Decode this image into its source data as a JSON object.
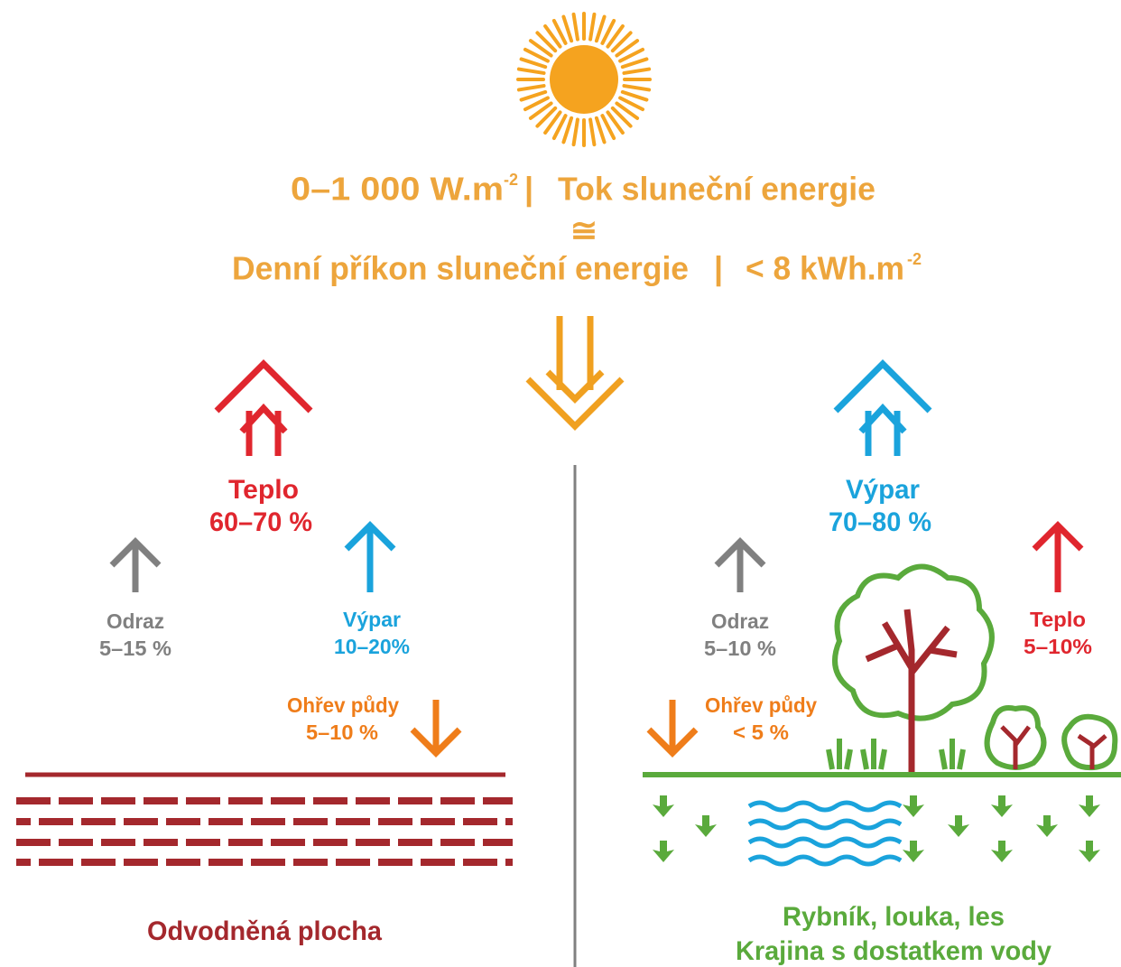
{
  "header": {
    "flux": {
      "value": "0–1 000 W.m",
      "sup": "-2"
    },
    "flux_label": "Tok sluneční energie",
    "separator": "|",
    "approx": "≅",
    "daily_label": "Denní příkon sluneční energie",
    "daily": {
      "value": "< 8 kWh.m",
      "sup": "-2"
    }
  },
  "left": {
    "title": "Odvodněná plocha",
    "flows": [
      {
        "label": "Teplo",
        "value": "60–70 %"
      },
      {
        "label": "Odraz",
        "value": "5–15 %"
      },
      {
        "label": "Výpar",
        "value": "10–20%"
      },
      {
        "label": "Ohřev půdy",
        "value": "5–10 %"
      }
    ]
  },
  "right": {
    "title": [
      "Rybník, louka, les",
      "Krajina s dostatkem vody"
    ],
    "flows": [
      {
        "label": "Výpar",
        "value": "70–80 %"
      },
      {
        "label": "Odraz",
        "value": "5–10 %"
      },
      {
        "label": "Teplo",
        "value": "5–10%"
      },
      {
        "label": "Ohřev půdy",
        "value": "< 5 %"
      }
    ]
  }
}
